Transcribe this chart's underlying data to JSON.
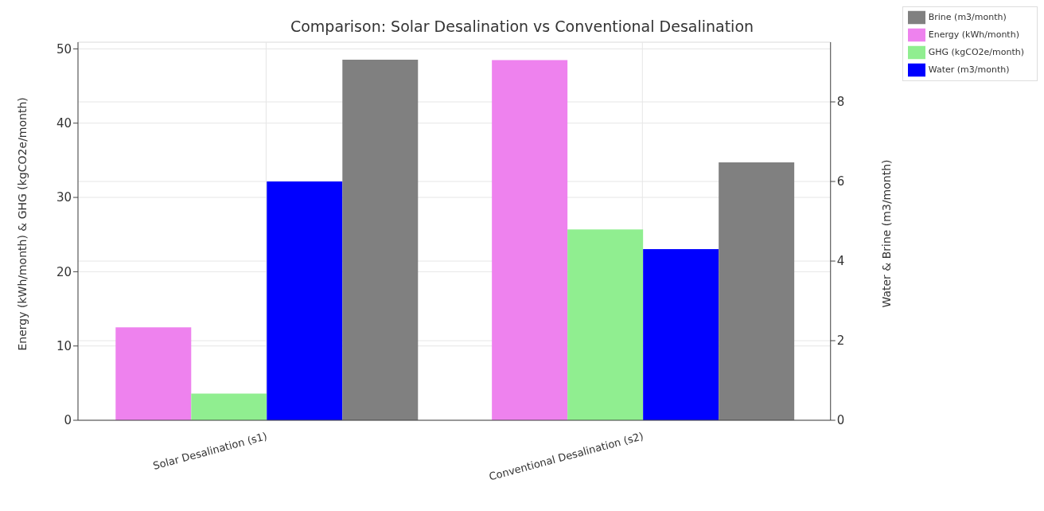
{
  "chart_data": {
    "type": "bar",
    "title": "Comparison: Solar Desalination vs Conventional Desalination",
    "categories": [
      "Solar Desalination (s1)",
      "Conventional Desalination (s2)"
    ],
    "ylabel": "Energy (kWh/month) & GHG (kgCO2e/month)",
    "y2label": "Water & Brine (m3/month)",
    "series": [
      {
        "name": "Energy (kWh/month)",
        "color": "#ee82ee",
        "values": [
          12.5,
          48.5
        ]
      },
      {
        "name": "GHG (kgCO2e/month)",
        "color": "#90ee90",
        "values": [
          3.6,
          25.7
        ]
      },
      {
        "name": "Water (m3/month)",
        "color": "#0000ff",
        "values": [
          6.0,
          4.3
        ],
        "axis": "y2"
      },
      {
        "name": "Brine (m3/month)",
        "color": "#808080",
        "values": [
          9.06,
          6.48
        ],
        "axis": "y2"
      }
    ],
    "ylim": [
      0,
      50.9
    ],
    "yticks": [
      0,
      10,
      20,
      30,
      40,
      50
    ],
    "y2lim": [
      0,
      9.5
    ],
    "y2ticks": [
      0,
      2,
      4,
      6,
      8
    ],
    "grid": true,
    "legend": "top right"
  }
}
